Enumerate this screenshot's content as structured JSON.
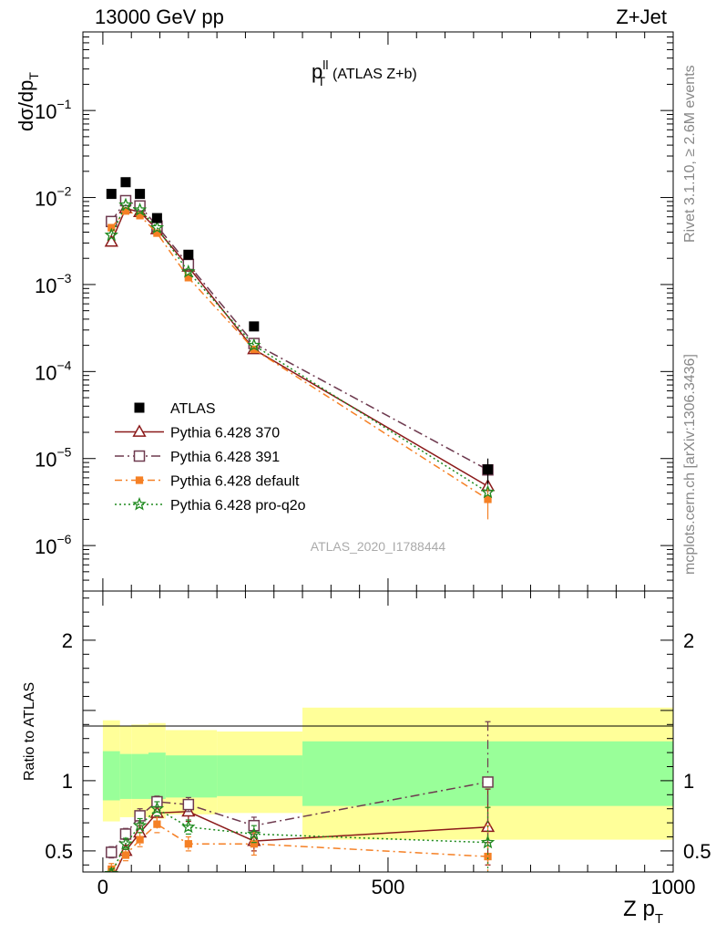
{
  "header": {
    "left": "13000 GeV pp",
    "right": "Z+Jet"
  },
  "side_labels": {
    "rivet": "Rivet 3.1.10, ≥ 2.6M events",
    "mcplots": "mcplots.cern.ch [arXiv:1306.3436]"
  },
  "chart_data": [
    {
      "type": "scatter",
      "title": "p_T^ll (ATLAS Z+b)",
      "title_main": "p",
      "title_sup": "ll",
      "title_sub": "T",
      "title_suffix": "(ATLAS Z+b)",
      "ylabel": "dσ/dp",
      "ylabel_sub": "T",
      "xlabel": "Z p",
      "xlabel_sub": "T",
      "yscale": "log",
      "xlim": [
        -35,
        1000
      ],
      "ylim": [
        3e-07,
        0.8
      ],
      "ytick_labels": [
        {
          "value": 1e-06,
          "base": "10",
          "exp": "−6"
        },
        {
          "value": 1e-05,
          "base": "10",
          "exp": "−5"
        },
        {
          "value": 0.0001,
          "base": "10",
          "exp": "−4"
        },
        {
          "value": 0.001,
          "base": "10",
          "exp": "−3"
        },
        {
          "value": 0.01,
          "base": "10",
          "exp": "−2"
        },
        {
          "value": 0.1,
          "base": "10",
          "exp": "−1"
        }
      ],
      "watermark": "ATLAS_2020_I1788444",
      "legend_position": "lower-left",
      "series": [
        {
          "name": "ATLAS",
          "marker": "filled-square",
          "color": "#000000",
          "x": [
            15,
            40,
            65,
            95,
            150,
            265,
            675
          ],
          "y": [
            0.011,
            0.015,
            0.011,
            0.0058,
            0.0022,
            0.00033,
            7.5e-06
          ],
          "yerr": [
            0,
            0,
            0,
            0,
            0,
            0,
            2.5e-06
          ]
        },
        {
          "name": "Pythia 6.428 370",
          "marker": "open-triangle",
          "color": "#8b1a1a",
          "dash": "solid",
          "x": [
            15,
            40,
            65,
            95,
            150,
            265,
            675
          ],
          "y": [
            0.0031,
            0.0075,
            0.0068,
            0.0043,
            0.0016,
            0.00018,
            4.8e-06
          ]
        },
        {
          "name": "Pythia 6.428 391",
          "marker": "open-square",
          "color": "#6e3a4f",
          "dash": "dashdot",
          "x": [
            15,
            40,
            65,
            95,
            150,
            265,
            675
          ],
          "y": [
            0.0053,
            0.0092,
            0.008,
            0.0047,
            0.0017,
            0.00021,
            7.4e-06
          ]
        },
        {
          "name": "Pythia 6.428 default",
          "marker": "filled-square-small",
          "color": "#f58025",
          "dash": "dashdot2",
          "x": [
            15,
            40,
            65,
            95,
            150,
            265,
            675
          ],
          "y": [
            0.0045,
            0.007,
            0.0062,
            0.0039,
            0.0012,
            0.00018,
            3.4e-06
          ],
          "yerr": [
            0,
            0,
            0,
            0,
            0,
            0,
            1.4e-06
          ]
        },
        {
          "name": "Pythia 6.428 pro-q2o",
          "marker": "open-star",
          "color": "#1f8a1f",
          "dash": "dotted",
          "x": [
            15,
            40,
            65,
            95,
            150,
            265,
            675
          ],
          "y": [
            0.0037,
            0.0082,
            0.0072,
            0.0045,
            0.0014,
            0.0002,
            4.1e-06
          ]
        }
      ]
    },
    {
      "type": "scatter",
      "ylabel": "Ratio to ATLAS",
      "xlim": [
        -35,
        1000
      ],
      "ylim": [
        0.35,
        2.35
      ],
      "ytick_labels": [
        {
          "value": 0.5,
          "label": "0.5"
        },
        {
          "value": 1,
          "label": "1"
        },
        {
          "value": 2,
          "label": "2"
        }
      ],
      "xtick_labels": [
        {
          "value": 0,
          "label": "0"
        },
        {
          "value": 500,
          "label": "500"
        },
        {
          "value": 1000,
          "label": "1000"
        }
      ],
      "bands": {
        "colors": {
          "inner": "#99ff99",
          "outer": "#ffff99"
        },
        "bins": [
          {
            "x0": 0,
            "x1": 30,
            "inner": [
              0.86,
              1.21
            ],
            "outer": [
              0.71,
              1.43
            ]
          },
          {
            "x0": 30,
            "x1": 50,
            "inner": [
              0.87,
              1.19
            ],
            "outer": [
              0.74,
              1.39
            ]
          },
          {
            "x0": 50,
            "x1": 80,
            "inner": [
              0.87,
              1.19
            ],
            "outer": [
              0.74,
              1.4
            ]
          },
          {
            "x0": 80,
            "x1": 110,
            "inner": [
              0.87,
              1.2
            ],
            "outer": [
              0.73,
              1.41
            ]
          },
          {
            "x0": 110,
            "x1": 200,
            "inner": [
              0.88,
              1.18
            ],
            "outer": [
              0.76,
              1.36
            ]
          },
          {
            "x0": 200,
            "x1": 350,
            "inner": [
              0.89,
              1.18
            ],
            "outer": [
              0.77,
              1.35
            ]
          },
          {
            "x0": 350,
            "x1": 1000,
            "inner": [
              0.82,
              1.28
            ],
            "outer": [
              0.58,
              1.52
            ]
          }
        ]
      },
      "series": [
        {
          "name": "Pythia 6.428 370",
          "marker": "open-triangle",
          "color": "#8b1a1a",
          "dash": "solid",
          "x": [
            15,
            40,
            65,
            95,
            150,
            265,
            675
          ],
          "y": [
            0.29,
            0.5,
            0.63,
            0.77,
            0.78,
            0.57,
            0.67
          ],
          "yerr": [
            0.03,
            0.04,
            0.05,
            0.06,
            0.07,
            0.07,
            0.27
          ]
        },
        {
          "name": "Pythia 6.428 391",
          "marker": "open-square",
          "color": "#6e3a4f",
          "dash": "dashdot",
          "x": [
            15,
            40,
            65,
            95,
            150,
            265,
            675
          ],
          "y": [
            0.49,
            0.62,
            0.75,
            0.85,
            0.83,
            0.68,
            0.99
          ],
          "yerr": [
            0.04,
            0.04,
            0.05,
            0.04,
            0.05,
            0.06,
            0.43
          ]
        },
        {
          "name": "Pythia 6.428 default",
          "marker": "filled-square-small",
          "color": "#f58025",
          "dash": "dashdot2",
          "x": [
            15,
            40,
            65,
            95,
            150,
            265,
            675
          ],
          "y": [
            0.37,
            0.47,
            0.58,
            0.69,
            0.55,
            0.55,
            0.46
          ],
          "yerr": [
            0.04,
            0.04,
            0.05,
            0.06,
            0.05,
            0.08,
            0.22
          ]
        },
        {
          "name": "Pythia 6.428 pro-q2o",
          "marker": "open-star",
          "color": "#1f8a1f",
          "dash": "dotted",
          "x": [
            15,
            40,
            65,
            95,
            150,
            265,
            675
          ],
          "y": [
            0.34,
            0.55,
            0.68,
            0.8,
            0.67,
            0.62,
            0.56
          ],
          "yerr": [
            0.03,
            0.04,
            0.05,
            0.05,
            0.05,
            0.06,
            0.25
          ]
        }
      ]
    }
  ]
}
